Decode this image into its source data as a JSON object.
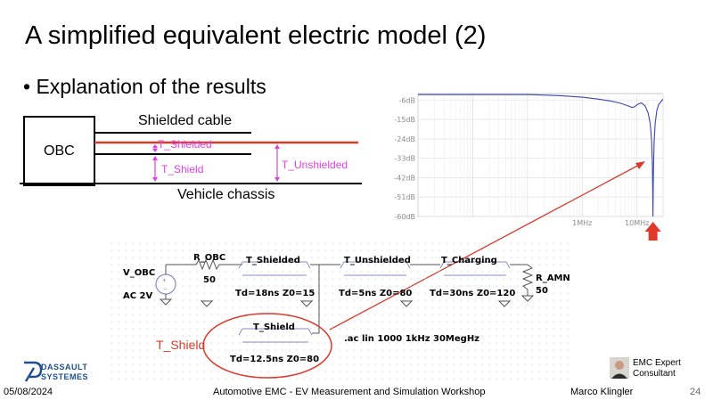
{
  "slide": {
    "title": "A simplified equivalent electric model (2)",
    "bullet": "Explanation of the results"
  },
  "diagram": {
    "obc_label": "OBC",
    "cable_label": "Shielded cable",
    "chassis_label": "Vehicle chassis",
    "t_shielded": "T_Shielded",
    "t_shield": "T_Shield",
    "t_unshielded": "T_Unshielded"
  },
  "chart_data": {
    "type": "line",
    "y_tick_labels": [
      "-6dB",
      "-15dB",
      "-24dB",
      "-33dB",
      "-42dB",
      "-51dB",
      "-60dB"
    ],
    "x_tick_labels": [
      "1MHz",
      "10MHz"
    ],
    "x_scale": "log",
    "xlim": [
      1000,
      30000000
    ],
    "ylim": [
      -60,
      -3
    ],
    "grid": true,
    "series": [
      {
        "color": "#3a46b0",
        "x": [
          1000,
          100000,
          200000,
          400000,
          1000000,
          2000000,
          3500000,
          5000000,
          7000000,
          8000000,
          9000000,
          10000000,
          12000000,
          14000000,
          16000000,
          17500000,
          18500000,
          19100000,
          19400000,
          19600000,
          19800000,
          20100000,
          20600000,
          21500000,
          23000000,
          25000000,
          28000000,
          30000000
        ],
        "y": [
          -3.5,
          -3.5,
          -3.7,
          -4.0,
          -4.7,
          -5.6,
          -6.6,
          -7.5,
          -8.8,
          -9.4,
          -9.2,
          -8.2,
          -7.3,
          -8.6,
          -12,
          -17,
          -25,
          -36,
          -50,
          -60,
          -48,
          -36,
          -25,
          -17,
          -11,
          -8,
          -6.5,
          -5.6
        ]
      }
    ],
    "marker": "red-up-arrow"
  },
  "schematic": {
    "v_obc": "V_OBC",
    "ac_value": "AC 2V",
    "r_obc": "R_OBC",
    "r_obc_value": "50",
    "t_shielded": "T_Shielded",
    "t_shielded_params": "Td=18ns  Z0=15",
    "t_unshielded": "T_Unshielded",
    "t_unshielded_params": "Td=5ns  Z0=80",
    "t_charging": "T_Charging",
    "t_charging_params": "Td=30ns  Z0=120",
    "r_amn": "R_AMN",
    "r_amn_value": "50",
    "t_shield": "T_Shield",
    "t_shield_params": "Td=12.5ns  Z0=80",
    "ac_directive": ".ac lin 1000 1kHz 30MegHz",
    "t_shield_callout": "T_Shield"
  },
  "colors": {
    "red": "#d93a2b",
    "magenta": "#e040e0",
    "plot_line": "#3a46b0"
  },
  "footer": {
    "logo_line1": "DASSAULT",
    "logo_line2": "SYSTEMES",
    "date": "05/08/2024",
    "center": "Automotive EMC - EV Measurement and Simulation Workshop",
    "author": "Marco Klingler",
    "page": "24",
    "badge_line1": "EMC Expert",
    "badge_line2": "Consultant"
  }
}
